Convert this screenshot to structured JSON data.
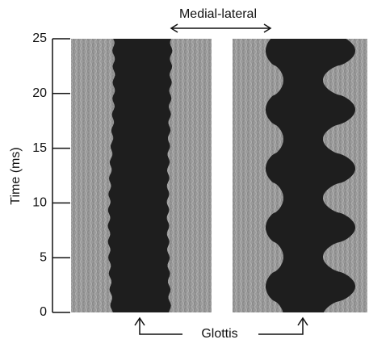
{
  "chart_data": {
    "type": "kymogram",
    "y_label": "Time (ms)",
    "ylim": [
      0,
      25
    ],
    "yticks": [
      0,
      5,
      10,
      15,
      20,
      25
    ],
    "annotations": {
      "top": "Medial-lateral",
      "bottom": "Glottis"
    }
  }
}
